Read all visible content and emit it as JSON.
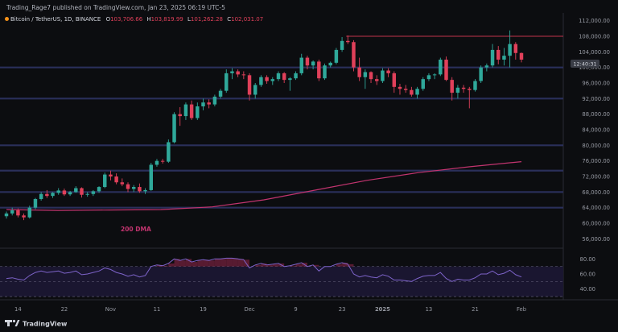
{
  "header": {
    "publisher_line": "Trading_Rage7 published on TradingView.com, Jan 23, 2025 06:19 UTC-5",
    "symbol_line": "Bitcoin / TetherUS, 1D, BINANCE",
    "ohlc_o_label": "O",
    "ohlc_o": "103,706.66",
    "ohlc_h_label": "H",
    "ohlc_h": "103,819.99",
    "ohlc_l_label": "L",
    "ohlc_l": "101,262.28",
    "ohlc_c_label": "C",
    "ohlc_c": "102,031.07"
  },
  "price_axis": {
    "labels": [
      "112,000.00",
      "108,000.00",
      "104,000.00",
      "100,000.00",
      "96,000.00",
      "92,000.00",
      "88,000.00",
      "84,000.00",
      "80,000.00",
      "76,000.00",
      "72,000.00",
      "68,000.00",
      "64,000.00",
      "60,000.00",
      "56,000.00"
    ],
    "countdown": "12:40:31"
  },
  "rsi_axis": {
    "labels": [
      "80.00",
      "60.00",
      "40.00"
    ]
  },
  "time_axis": {
    "labels": [
      "14",
      "22",
      "Nov",
      "11",
      "19",
      "Dec",
      "9",
      "23",
      "2025",
      "13",
      "21",
      "Feb"
    ]
  },
  "annotations": {
    "dma_label": "200 DMA"
  },
  "footer": {
    "brand": "TradingView"
  },
  "colors": {
    "background": "#0c0d10",
    "bull": "#2fa89a",
    "bear": "#e0405a",
    "zone_line": "#2a2f5a",
    "resistance": "#c2344d",
    "dma": "#c2346f",
    "rsi_line": "#7d63c9",
    "axis_text": "#9598a1"
  },
  "chart_data": {
    "type": "candlestick",
    "symbol": "Bitcoin / TetherUS",
    "interval": "1D",
    "exchange": "BINANCE",
    "price_range": [
      54000,
      114000
    ],
    "horizontal_levels": [
      100000,
      92000,
      80000,
      73500,
      68000,
      64000
    ],
    "resistance_level": 108000,
    "candles": [
      {
        "o": 61800,
        "h": 63000,
        "l": 61200,
        "c": 62500
      },
      {
        "o": 62500,
        "h": 64000,
        "l": 62000,
        "c": 63300
      },
      {
        "o": 63300,
        "h": 63800,
        "l": 61500,
        "c": 62000
      },
      {
        "o": 62000,
        "h": 62500,
        "l": 60800,
        "c": 61500
      },
      {
        "o": 61500,
        "h": 64500,
        "l": 61200,
        "c": 64000
      },
      {
        "o": 64000,
        "h": 66500,
        "l": 63600,
        "c": 66200
      },
      {
        "o": 66200,
        "h": 68000,
        "l": 65800,
        "c": 67500
      },
      {
        "o": 67500,
        "h": 68500,
        "l": 66500,
        "c": 67000
      },
      {
        "o": 67000,
        "h": 68000,
        "l": 66500,
        "c": 67800
      },
      {
        "o": 67800,
        "h": 69000,
        "l": 67300,
        "c": 68400
      },
      {
        "o": 68400,
        "h": 68900,
        "l": 67000,
        "c": 67400
      },
      {
        "o": 67400,
        "h": 68300,
        "l": 67000,
        "c": 68000
      },
      {
        "o": 68000,
        "h": 69500,
        "l": 67800,
        "c": 69000
      },
      {
        "o": 69000,
        "h": 69200,
        "l": 66600,
        "c": 67300
      },
      {
        "o": 67300,
        "h": 68000,
        "l": 66800,
        "c": 67500
      },
      {
        "o": 67500,
        "h": 68500,
        "l": 67000,
        "c": 68200
      },
      {
        "o": 68200,
        "h": 69500,
        "l": 67800,
        "c": 69300
      },
      {
        "o": 69300,
        "h": 73000,
        "l": 69000,
        "c": 72500
      },
      {
        "o": 72500,
        "h": 73500,
        "l": 71000,
        "c": 72000
      },
      {
        "o": 72000,
        "h": 72800,
        "l": 70000,
        "c": 70500
      },
      {
        "o": 70500,
        "h": 71500,
        "l": 69500,
        "c": 70000
      },
      {
        "o": 70000,
        "h": 70500,
        "l": 68000,
        "c": 68800
      },
      {
        "o": 68800,
        "h": 69800,
        "l": 68000,
        "c": 69300
      },
      {
        "o": 69300,
        "h": 70200,
        "l": 67800,
        "c": 68200
      },
      {
        "o": 68200,
        "h": 69000,
        "l": 67500,
        "c": 68500
      },
      {
        "o": 68500,
        "h": 75500,
        "l": 68300,
        "c": 75000
      },
      {
        "o": 75000,
        "h": 76500,
        "l": 74500,
        "c": 76000
      },
      {
        "o": 76000,
        "h": 76500,
        "l": 75300,
        "c": 75800
      },
      {
        "o": 75800,
        "h": 81500,
        "l": 75500,
        "c": 80800
      },
      {
        "o": 80800,
        "h": 88500,
        "l": 80500,
        "c": 88000
      },
      {
        "o": 88000,
        "h": 89800,
        "l": 85000,
        "c": 87500
      },
      {
        "o": 87500,
        "h": 91000,
        "l": 86500,
        "c": 90500
      },
      {
        "o": 90500,
        "h": 91500,
        "l": 86500,
        "c": 87000
      },
      {
        "o": 87000,
        "h": 91000,
        "l": 86500,
        "c": 90000
      },
      {
        "o": 90000,
        "h": 92000,
        "l": 89000,
        "c": 91000
      },
      {
        "o": 91000,
        "h": 91800,
        "l": 89500,
        "c": 90500
      },
      {
        "o": 90500,
        "h": 93000,
        "l": 90000,
        "c": 92500
      },
      {
        "o": 92500,
        "h": 94500,
        "l": 92000,
        "c": 94000
      },
      {
        "o": 94000,
        "h": 99500,
        "l": 93500,
        "c": 98500
      },
      {
        "o": 98500,
        "h": 99800,
        "l": 97000,
        "c": 99000
      },
      {
        "o": 99000,
        "h": 99500,
        "l": 97500,
        "c": 98200
      },
      {
        "o": 98200,
        "h": 99000,
        "l": 97000,
        "c": 98000
      },
      {
        "o": 98000,
        "h": 98500,
        "l": 91500,
        "c": 93000
      },
      {
        "o": 93000,
        "h": 96000,
        "l": 92000,
        "c": 95500
      },
      {
        "o": 95500,
        "h": 98000,
        "l": 95000,
        "c": 97500
      },
      {
        "o": 97500,
        "h": 98000,
        "l": 95800,
        "c": 96500
      },
      {
        "o": 96500,
        "h": 97500,
        "l": 95500,
        "c": 97000
      },
      {
        "o": 97000,
        "h": 99000,
        "l": 96500,
        "c": 98500
      },
      {
        "o": 98500,
        "h": 98800,
        "l": 96000,
        "c": 96800
      },
      {
        "o": 96800,
        "h": 97500,
        "l": 94000,
        "c": 97200
      },
      {
        "o": 97200,
        "h": 99000,
        "l": 96800,
        "c": 98500
      },
      {
        "o": 98500,
        "h": 103500,
        "l": 98000,
        "c": 102500
      },
      {
        "o": 102500,
        "h": 103000,
        "l": 99500,
        "c": 100500
      },
      {
        "o": 100500,
        "h": 101800,
        "l": 99500,
        "c": 101500
      },
      {
        "o": 101500,
        "h": 102000,
        "l": 96500,
        "c": 97200
      },
      {
        "o": 97200,
        "h": 101000,
        "l": 96800,
        "c": 100500
      },
      {
        "o": 100500,
        "h": 101500,
        "l": 100000,
        "c": 101200
      },
      {
        "o": 101200,
        "h": 105000,
        "l": 100800,
        "c": 104500
      },
      {
        "o": 104500,
        "h": 107800,
        "l": 104000,
        "c": 106800
      },
      {
        "o": 106800,
        "h": 108200,
        "l": 106000,
        "c": 106500
      },
      {
        "o": 106500,
        "h": 107000,
        "l": 99000,
        "c": 100000
      },
      {
        "o": 100000,
        "h": 102500,
        "l": 96500,
        "c": 97500
      },
      {
        "o": 97500,
        "h": 99500,
        "l": 94500,
        "c": 98800
      },
      {
        "o": 98800,
        "h": 99000,
        "l": 96000,
        "c": 97000
      },
      {
        "o": 97000,
        "h": 98000,
        "l": 95500,
        "c": 96500
      },
      {
        "o": 96500,
        "h": 99800,
        "l": 96000,
        "c": 99200
      },
      {
        "o": 99200,
        "h": 99800,
        "l": 97500,
        "c": 98500
      },
      {
        "o": 98500,
        "h": 99000,
        "l": 93500,
        "c": 95000
      },
      {
        "o": 95000,
        "h": 95800,
        "l": 93000,
        "c": 94500
      },
      {
        "o": 94500,
        "h": 95500,
        "l": 93500,
        "c": 94200
      },
      {
        "o": 94200,
        "h": 95000,
        "l": 92500,
        "c": 93000
      },
      {
        "o": 93000,
        "h": 95000,
        "l": 92000,
        "c": 94500
      },
      {
        "o": 94500,
        "h": 97500,
        "l": 94000,
        "c": 97000
      },
      {
        "o": 97000,
        "h": 98500,
        "l": 96500,
        "c": 98000
      },
      {
        "o": 98000,
        "h": 98500,
        "l": 97000,
        "c": 98200
      },
      {
        "o": 98200,
        "h": 102500,
        "l": 97800,
        "c": 102000
      },
      {
        "o": 102000,
        "h": 102800,
        "l": 96500,
        "c": 96800
      },
      {
        "o": 96800,
        "h": 97500,
        "l": 91500,
        "c": 93500
      },
      {
        "o": 93500,
        "h": 95500,
        "l": 92000,
        "c": 94800
      },
      {
        "o": 94800,
        "h": 95500,
        "l": 93500,
        "c": 94500
      },
      {
        "o": 94500,
        "h": 95000,
        "l": 89500,
        "c": 94200
      },
      {
        "o": 94200,
        "h": 97000,
        "l": 93800,
        "c": 96500
      },
      {
        "o": 96500,
        "h": 100500,
        "l": 96000,
        "c": 100000
      },
      {
        "o": 100000,
        "h": 101000,
        "l": 99000,
        "c": 100500
      },
      {
        "o": 100500,
        "h": 106000,
        "l": 100000,
        "c": 104500
      },
      {
        "o": 104500,
        "h": 105500,
        "l": 100800,
        "c": 102000
      },
      {
        "o": 102000,
        "h": 105000,
        "l": 100500,
        "c": 103000
      },
      {
        "o": 103000,
        "h": 109500,
        "l": 100000,
        "c": 106000
      },
      {
        "o": 106000,
        "h": 106500,
        "l": 102000,
        "c": 103700
      },
      {
        "o": 103700,
        "h": 103800,
        "l": 101300,
        "c": 102000
      }
    ],
    "dma_200": [
      63500,
      63300,
      63400,
      63500,
      64200,
      66000,
      68500,
      71000,
      73000,
      74500,
      75800
    ],
    "rsi_range": [
      30,
      90
    ],
    "rsi_levels": [
      70,
      30
    ],
    "rsi_values": [
      54,
      55,
      53,
      52,
      58,
      62,
      64,
      62,
      63,
      64,
      61,
      62,
      64,
      59,
      60,
      62,
      64,
      68,
      66,
      62,
      60,
      57,
      59,
      56,
      58,
      70,
      72,
      71,
      74,
      80,
      78,
      80,
      76,
      78,
      79,
      78,
      80,
      80,
      81,
      81,
      80,
      79,
      68,
      72,
      74,
      72,
      73,
      74,
      70,
      71,
      73,
      75,
      70,
      72,
      64,
      70,
      70,
      73,
      75,
      73,
      60,
      56,
      58,
      56,
      55,
      59,
      57,
      52,
      52,
      51,
      50,
      54,
      57,
      58,
      58,
      62,
      54,
      50,
      53,
      52,
      52,
      55,
      60,
      60,
      64,
      59,
      61,
      65,
      59,
      56
    ]
  }
}
